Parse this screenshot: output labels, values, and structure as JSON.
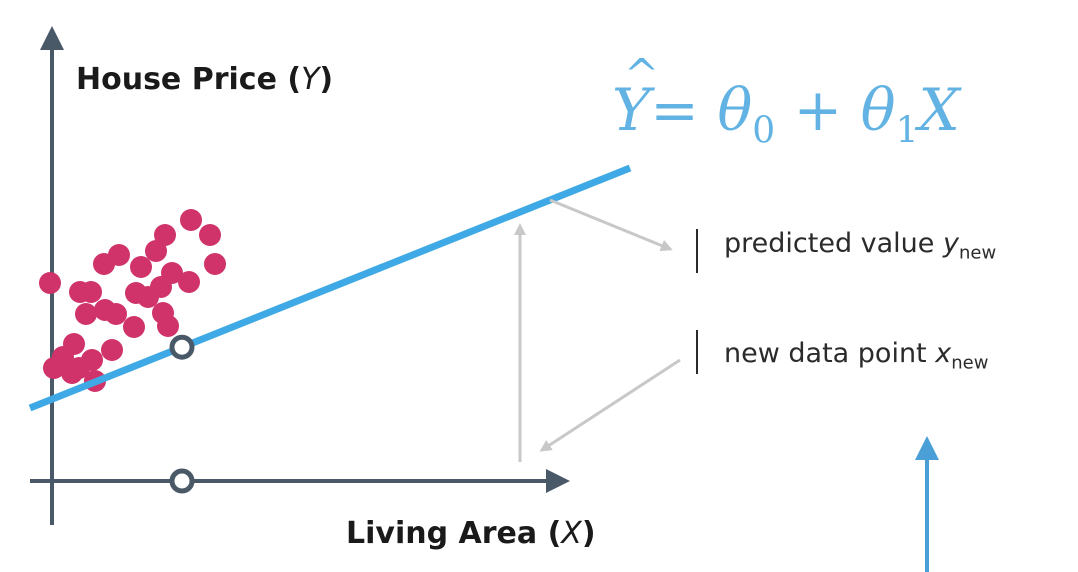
{
  "axes": {
    "y_label": "House Price",
    "y_symbol": "Y",
    "x_label": "Living Area",
    "x_symbol": "X"
  },
  "equation": {
    "lhs": "Y",
    "rhs_parts": [
      "= ",
      "θ",
      "0",
      " + ",
      "θ",
      "1",
      "X"
    ]
  },
  "annotations": {
    "predicted_text": "predicted value ",
    "predicted_var": "y",
    "predicted_sub": "new",
    "newpoint_text": "new data point ",
    "newpoint_var": "x",
    "newpoint_sub": "new"
  },
  "colors": {
    "points": "#d0336a",
    "regression_line": "#3fa9e6",
    "equation": "#62b3e3",
    "axes": "#4a5968",
    "marker": "#4a5968",
    "arrows": "#c8c8c8",
    "blue_arrow": "#4a9fd6"
  },
  "chart_data": {
    "type": "scatter",
    "regression": {
      "intercept": 0.73,
      "slope": 0.4
    },
    "new_point_x": 1.52,
    "points": [
      [
        0.2,
        1.98
      ],
      [
        0.24,
        1.13
      ],
      [
        0.33,
        1.24
      ],
      [
        0.42,
        1.08
      ],
      [
        0.44,
        1.37
      ],
      [
        0.49,
        1.13
      ],
      [
        0.5,
        1.89
      ],
      [
        0.56,
        1.67
      ],
      [
        0.61,
        1.89
      ],
      [
        0.62,
        1.21
      ],
      [
        0.65,
        1.0
      ],
      [
        0.74,
        2.17
      ],
      [
        0.75,
        1.71
      ],
      [
        0.82,
        1.31
      ],
      [
        0.86,
        1.67
      ],
      [
        0.89,
        2.26
      ],
      [
        1.04,
        1.54
      ],
      [
        1.06,
        1.88
      ],
      [
        1.11,
        2.14
      ],
      [
        1.18,
        1.84
      ],
      [
        1.26,
        2.3
      ],
      [
        1.31,
        1.94
      ],
      [
        1.33,
        1.68
      ],
      [
        1.35,
        2.46
      ],
      [
        1.38,
        1.55
      ],
      [
        1.42,
        2.08
      ],
      [
        1.59,
        1.99
      ],
      [
        1.61,
        2.61
      ],
      [
        1.8,
        2.46
      ],
      [
        1.85,
        2.17
      ]
    ]
  }
}
